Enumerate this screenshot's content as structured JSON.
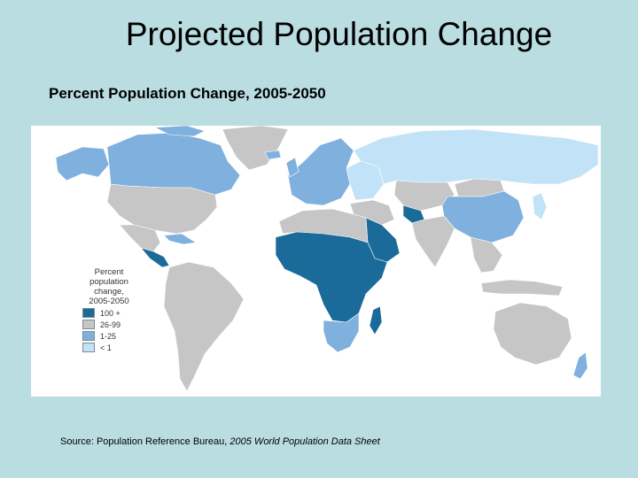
{
  "slide": {
    "title": "Projected Population Change",
    "subtitle": "Percent Population Change, 2005-2050"
  },
  "map": {
    "legend": {
      "title": "Percent\npopulation\nchange,\n2005-2050",
      "items": [
        {
          "label": "100 +",
          "color": "#1a6a9a"
        },
        {
          "label": "26-99",
          "color": "#c6c6c6"
        },
        {
          "label": "1-25",
          "color": "#7fb0de"
        },
        {
          "label": "< 1",
          "color": "#c2e2f7"
        }
      ]
    },
    "regions": [
      {
        "name": "canada",
        "category": "1-25"
      },
      {
        "name": "alaska",
        "category": "1-25"
      },
      {
        "name": "greenland",
        "category": "26-99"
      },
      {
        "name": "united-states",
        "category": "26-99"
      },
      {
        "name": "mexico",
        "category": "26-99"
      },
      {
        "name": "central-america",
        "category": "100 +"
      },
      {
        "name": "caribbean",
        "category": "1-25"
      },
      {
        "name": "south-america",
        "category": "26-99"
      },
      {
        "name": "western-europe",
        "category": "1-25"
      },
      {
        "name": "eastern-europe",
        "category": "< 1"
      },
      {
        "name": "russia",
        "category": "< 1"
      },
      {
        "name": "north-africa",
        "category": "26-99"
      },
      {
        "name": "sub-saharan-africa",
        "category": "100 +"
      },
      {
        "name": "southern-africa",
        "category": "1-25"
      },
      {
        "name": "madagascar",
        "category": "100 +"
      },
      {
        "name": "middle-east",
        "category": "26-99"
      },
      {
        "name": "saudi-arabia",
        "category": "100 +"
      },
      {
        "name": "afghanistan",
        "category": "100 +"
      },
      {
        "name": "central-asia",
        "category": "26-99"
      },
      {
        "name": "south-asia",
        "category": "26-99"
      },
      {
        "name": "china",
        "category": "1-25"
      },
      {
        "name": "mongolia",
        "category": "26-99"
      },
      {
        "name": "japan",
        "category": "< 1"
      },
      {
        "name": "southeast-asia",
        "category": "26-99"
      },
      {
        "name": "indonesia",
        "category": "26-99"
      },
      {
        "name": "australia",
        "category": "26-99"
      },
      {
        "name": "new-zealand",
        "category": "1-25"
      }
    ]
  },
  "source": {
    "prefix": "Source: Population Reference Bureau, ",
    "publication": "2005 World Population Data Sheet"
  }
}
